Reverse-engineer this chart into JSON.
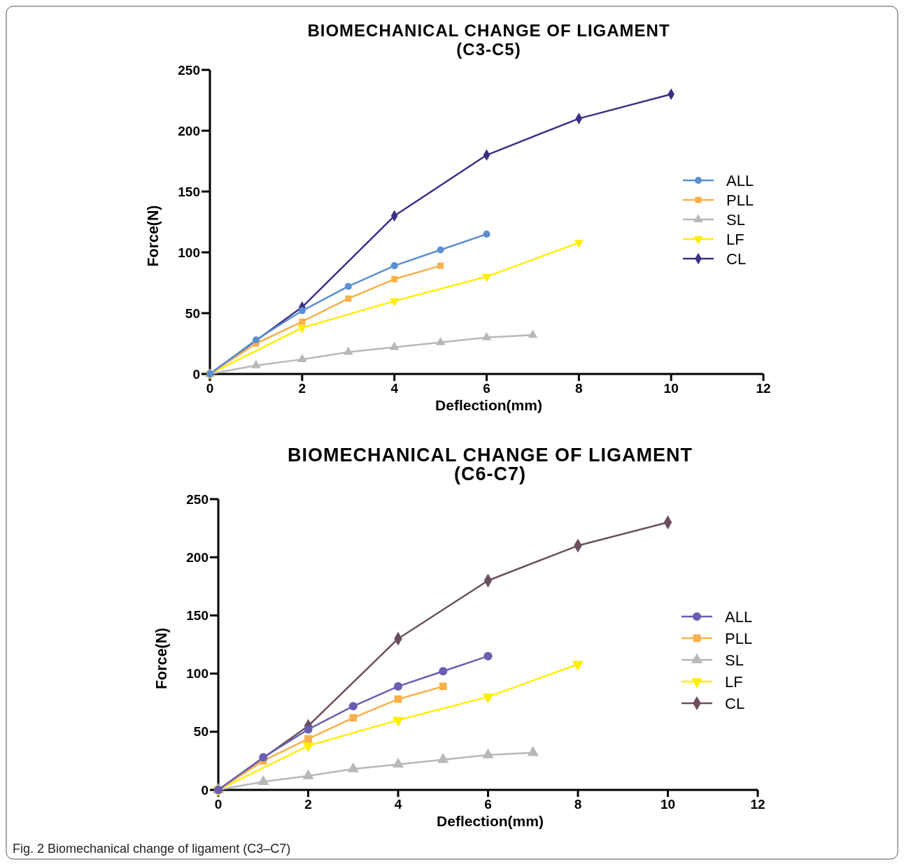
{
  "chart_data": [
    {
      "type": "line",
      "title": "BIOMECHANICAL CHANGE OF LIGAMENT\n(C3-C5)",
      "xlabel": "Deflection(mm)",
      "ylabel": "Force(N)",
      "xlim": [
        0,
        12
      ],
      "xticks": [
        0,
        2,
        4,
        6,
        8,
        10,
        12
      ],
      "ylim": [
        0,
        250
      ],
      "yticks": [
        0,
        50,
        100,
        150,
        200,
        250
      ],
      "legend": "right",
      "grid": false,
      "series": [
        {
          "name": "ALL",
          "color": "#5b8fd0",
          "marker": "circle",
          "x": [
            0,
            1,
            2,
            3,
            4,
            5,
            6
          ],
          "values": [
            0,
            28,
            52,
            72,
            89,
            102,
            115
          ]
        },
        {
          "name": "PLL",
          "color": "#f8b04a",
          "marker": "square",
          "x": [
            0,
            1,
            2,
            3,
            4,
            5
          ],
          "values": [
            0,
            25,
            43,
            62,
            78,
            89
          ]
        },
        {
          "name": "SL",
          "color": "#b8b8b8",
          "marker": "triangle",
          "x": [
            0,
            1,
            2,
            3,
            4,
            5,
            6,
            7
          ],
          "values": [
            0,
            7,
            12,
            18,
            22,
            26,
            30,
            32
          ]
        },
        {
          "name": "LF",
          "color": "#ffee00",
          "marker": "triangle-down",
          "x": [
            0,
            2,
            4,
            6,
            8
          ],
          "values": [
            0,
            38,
            60,
            80,
            108
          ]
        },
        {
          "name": "CL",
          "color": "#3b3185",
          "marker": "diamond",
          "x": [
            0,
            2,
            4,
            6,
            8,
            10
          ],
          "values": [
            0,
            55,
            130,
            180,
            210,
            230
          ]
        }
      ]
    },
    {
      "type": "line",
      "title": "BIOMECHANICAL CHANGE OF LIGAMENT\n(C6-C7)",
      "xlabel": "Deflection(mm)",
      "ylabel": "Force(N)",
      "xlim": [
        0,
        12
      ],
      "xticks": [
        0,
        2,
        4,
        6,
        8,
        10,
        12
      ],
      "ylim": [
        0,
        250
      ],
      "yticks": [
        0,
        50,
        100,
        150,
        200,
        250
      ],
      "legend": "right",
      "grid": false,
      "annotations": [
        "Fig. 2 Biomechanical change of ligament (C3–C7)"
      ],
      "series": [
        {
          "name": "ALL",
          "color": "#6a5fb0",
          "marker": "circle",
          "x": [
            0,
            1,
            2,
            3,
            4,
            5,
            6
          ],
          "values": [
            0,
            28,
            52,
            72,
            89,
            102,
            115
          ]
        },
        {
          "name": "PLL",
          "color": "#f8b04a",
          "marker": "square",
          "x": [
            0,
            1,
            2,
            3,
            4,
            5
          ],
          "values": [
            0,
            25,
            44,
            62,
            78,
            89
          ]
        },
        {
          "name": "SL",
          "color": "#b8b8b8",
          "marker": "triangle",
          "x": [
            0,
            1,
            2,
            3,
            4,
            5,
            6,
            7
          ],
          "values": [
            0,
            7,
            12,
            18,
            22,
            26,
            30,
            32
          ]
        },
        {
          "name": "LF",
          "color": "#ffee00",
          "marker": "triangle-down",
          "x": [
            0,
            2,
            4,
            6,
            8
          ],
          "values": [
            0,
            38,
            60,
            80,
            108
          ]
        },
        {
          "name": "CL",
          "color": "#6b4f5f",
          "marker": "diamond",
          "x": [
            0,
            2,
            4,
            6,
            8,
            10
          ],
          "values": [
            0,
            55,
            130,
            180,
            210,
            230
          ]
        }
      ]
    }
  ]
}
